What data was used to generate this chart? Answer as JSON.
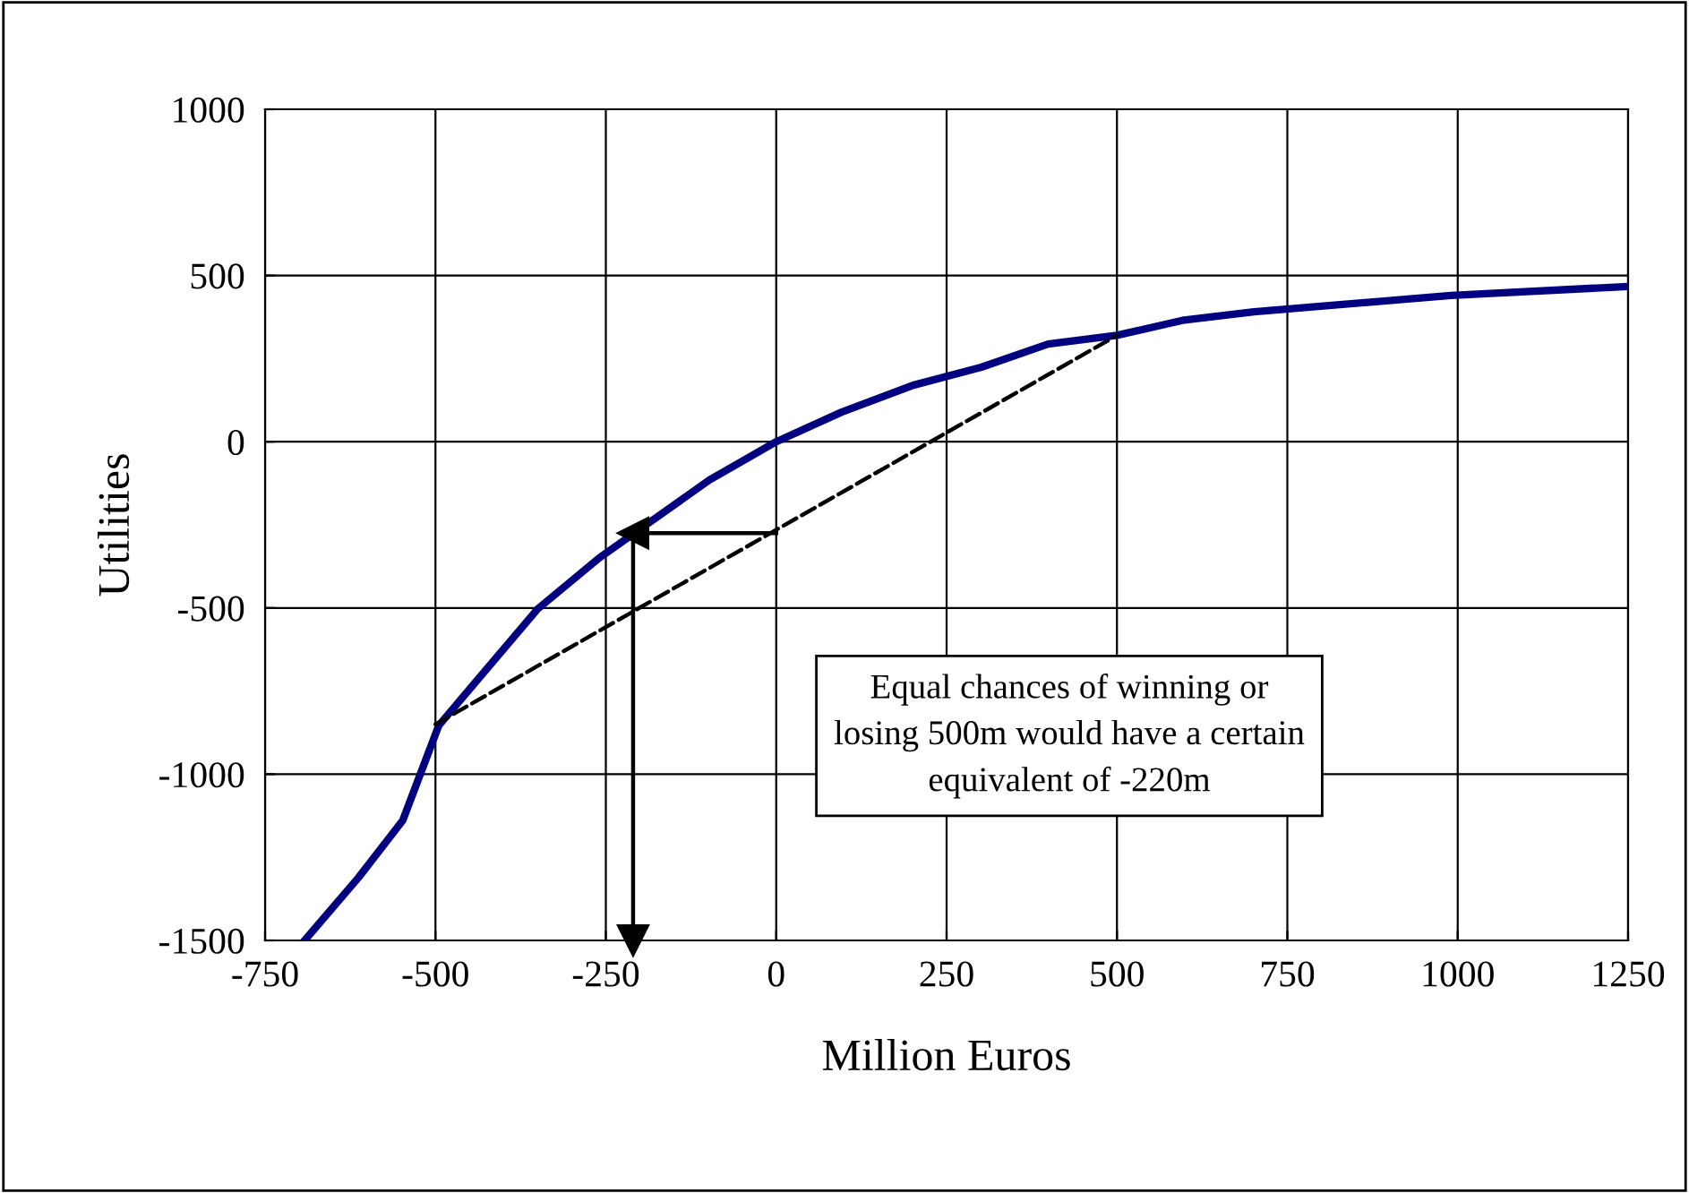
{
  "chart_data": {
    "type": "line",
    "xlabel": "Million Euros",
    "ylabel": "Utilities",
    "xlim": [
      -750,
      1250
    ],
    "xticks": [
      -750,
      -500,
      -250,
      0,
      250,
      500,
      750,
      1000,
      1250
    ],
    "ylim": [
      -1500,
      1000
    ],
    "yticks": [
      -1500,
      -1000,
      -500,
      0,
      500,
      1000
    ],
    "grid": true,
    "legend": false,
    "series": [
      {
        "color": "#000080",
        "line_style": "solid",
        "marker": "none",
        "x": [
          -692,
          -613,
          -548,
          -495,
          -350,
          -260,
          -98,
          0,
          96,
          201,
          301,
          399,
          500,
          596,
          701,
          990,
          1250
        ],
        "values": [
          -1500,
          -1311,
          -1139,
          -853,
          -503,
          -350,
          -115,
          0,
          89,
          170,
          224,
          294,
          320,
          365,
          391,
          440,
          467
        ]
      },
      {
        "color": "#000000",
        "line_style": "dashed",
        "marker": "none",
        "x": [
          -500,
          500
        ],
        "values": [
          -850,
          320
        ]
      },
      {
        "color": "#000000",
        "line_style": "solid",
        "marker": "triangle",
        "x": [
          0,
          -210
        ],
        "values": [
          -275,
          -275
        ]
      },
      {
        "color": "#000000",
        "line_style": "solid",
        "marker": "triangle",
        "x": [
          -210,
          -210
        ],
        "values": [
          -275,
          -1500
        ]
      }
    ],
    "annotations": [
      "Equal chances of winning or\nlosing 500m would have a certain\nequivalent of -220m"
    ]
  }
}
